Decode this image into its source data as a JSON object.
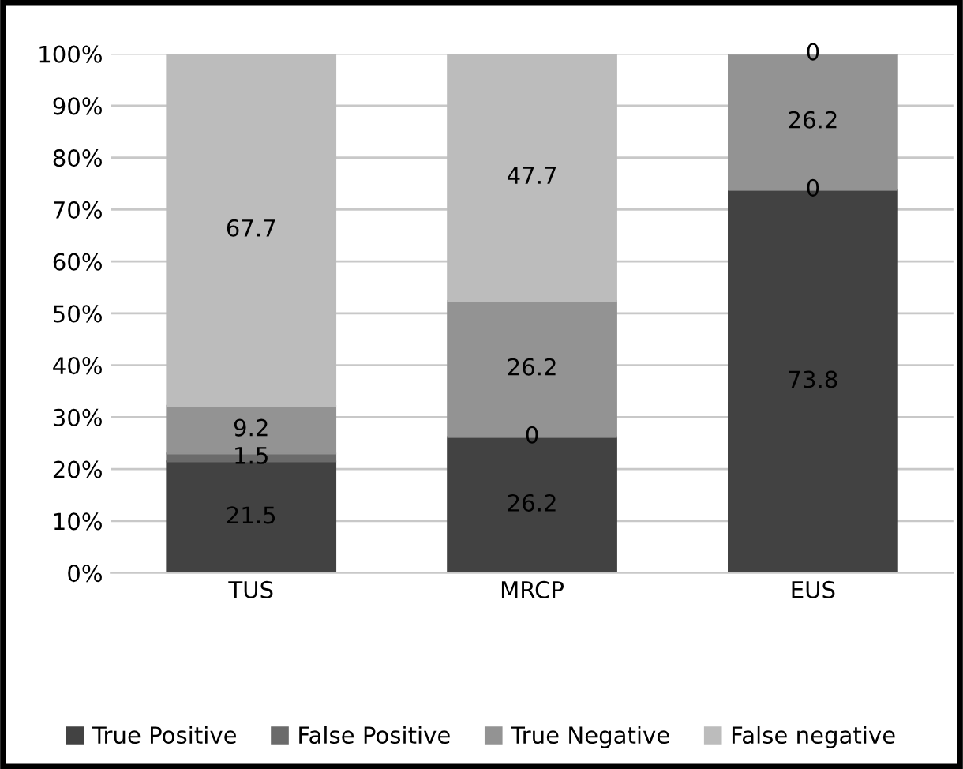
{
  "chart_data": {
    "type": "bar",
    "stacked": true,
    "categories": [
      "TUS",
      "MRCP",
      "EUS"
    ],
    "series": [
      {
        "name": "True Positive",
        "color": "#424242",
        "values": [
          21.5,
          26.2,
          73.8
        ]
      },
      {
        "name": "False Positive",
        "color": "#6b6b6b",
        "values": [
          1.5,
          0,
          0
        ]
      },
      {
        "name": "True Negative",
        "color": "#939393",
        "values": [
          9.2,
          26.2,
          26.2
        ]
      },
      {
        "name": "False negative",
        "color": "#bcbcbc",
        "values": [
          67.7,
          47.7,
          0
        ]
      }
    ],
    "ylim": [
      0,
      100
    ],
    "yticks": [
      {
        "value": 0,
        "label": "0%"
      },
      {
        "value": 10,
        "label": "10%"
      },
      {
        "value": 20,
        "label": "20%"
      },
      {
        "value": 30,
        "label": "30%"
      },
      {
        "value": 40,
        "label": "40%"
      },
      {
        "value": 50,
        "label": "50%"
      },
      {
        "value": 60,
        "label": "60%"
      },
      {
        "value": 70,
        "label": "70%"
      },
      {
        "value": 80,
        "label": "80%"
      },
      {
        "value": 90,
        "label": "90%"
      },
      {
        "value": 100,
        "label": "100%"
      }
    ],
    "grid": "y",
    "legend": "bottom",
    "data_labels": true
  }
}
